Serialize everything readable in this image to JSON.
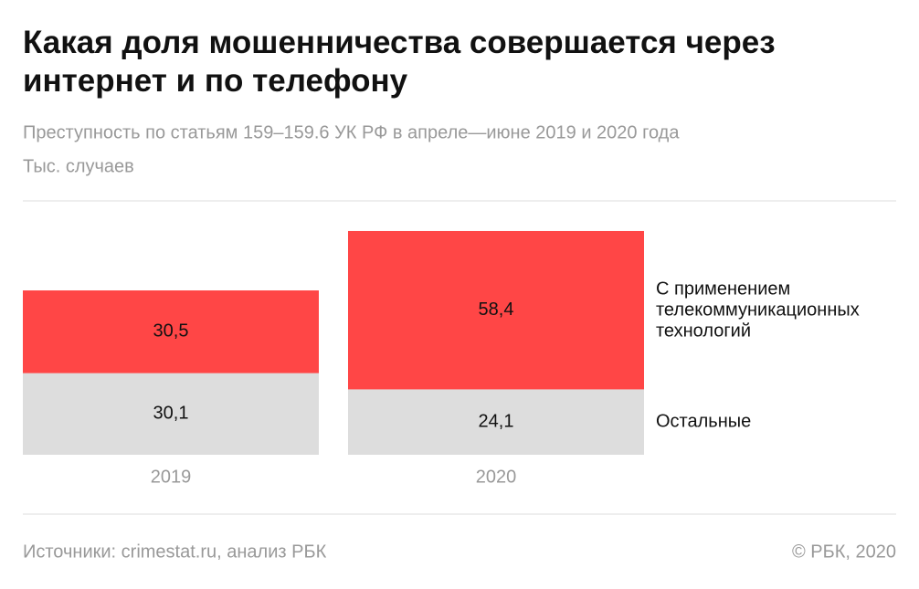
{
  "chart_data": {
    "type": "stacked-bar",
    "title": "Какая доля мошенничества совершается через интернет и по телефону",
    "subtitle": "Преступность по статьям 159–159.6 УК РФ в апреле—июне 2019 и 2020 года",
    "unit_label": "Тыс. случаев",
    "categories": [
      "2019",
      "2020"
    ],
    "series": [
      {
        "name": "Остальные",
        "color": "#dddddd",
        "values": [
          30.1,
          24.1
        ],
        "value_labels": [
          "30,1",
          "24,1"
        ]
      },
      {
        "name": "С применением телекоммуникационных технологий",
        "color": "#ff4646",
        "values": [
          30.5,
          58.4
        ],
        "value_labels": [
          "30,5",
          "58,4"
        ]
      }
    ],
    "source": "Источники: crimestat.ru, анализ РБК",
    "copyright": "© РБК, 2020"
  }
}
